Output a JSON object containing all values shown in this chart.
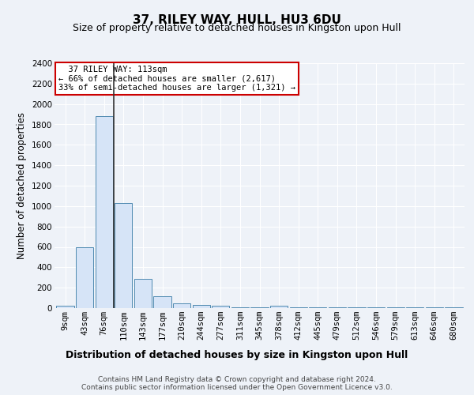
{
  "title": "37, RILEY WAY, HULL, HU3 6DU",
  "subtitle": "Size of property relative to detached houses in Kingston upon Hull",
  "xlabel_bottom": "Distribution of detached houses by size in Kingston upon Hull",
  "ylabel": "Number of detached properties",
  "footnote": "Contains HM Land Registry data © Crown copyright and database right 2024.\nContains public sector information licensed under the Open Government Licence v3.0.",
  "categories": [
    "9sqm",
    "43sqm",
    "76sqm",
    "110sqm",
    "143sqm",
    "177sqm",
    "210sqm",
    "244sqm",
    "277sqm",
    "311sqm",
    "345sqm",
    "378sqm",
    "412sqm",
    "445sqm",
    "479sqm",
    "512sqm",
    "546sqm",
    "579sqm",
    "613sqm",
    "646sqm",
    "680sqm"
  ],
  "values": [
    20,
    600,
    1880,
    1030,
    290,
    115,
    45,
    30,
    25,
    5,
    5,
    25,
    5,
    5,
    5,
    5,
    5,
    5,
    5,
    5,
    5
  ],
  "bar_color": "#d6e4f7",
  "bar_edge_color": "#4f8ab0",
  "vline_color": "#333333",
  "ylim": [
    0,
    2400
  ],
  "yticks": [
    0,
    200,
    400,
    600,
    800,
    1000,
    1200,
    1400,
    1600,
    1800,
    2000,
    2200,
    2400
  ],
  "annotation_line1": "  37 RILEY WAY: 113sqm",
  "annotation_line2": "← 66% of detached houses are smaller (2,617)",
  "annotation_line3": "33% of semi-detached houses are larger (1,321) →",
  "annotation_box_color": "#ffffff",
  "annotation_box_edge_color": "#cc0000",
  "bg_color": "#eef2f8",
  "grid_color": "#ffffff",
  "title_fontsize": 11,
  "subtitle_fontsize": 9,
  "tick_fontsize": 7.5,
  "ylabel_fontsize": 8.5,
  "xlabel_bottom_fontsize": 9,
  "annotation_fontsize": 7.5
}
